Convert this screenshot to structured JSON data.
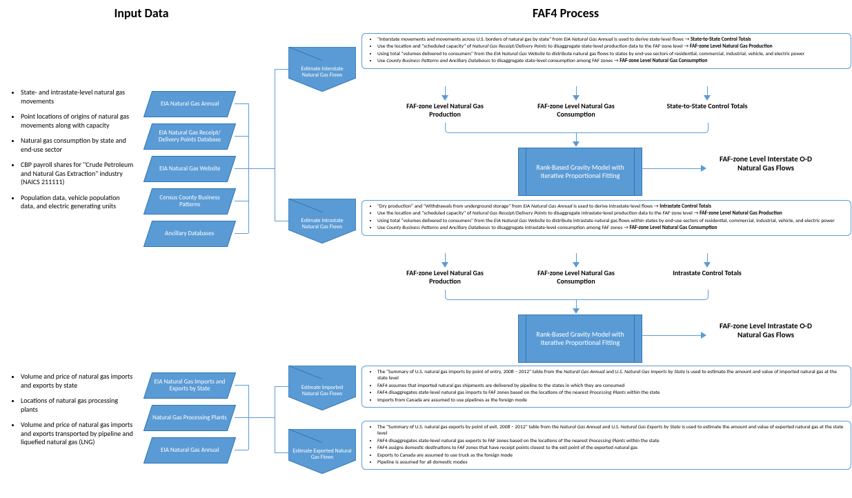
{
  "titles": {
    "input": "Input Data",
    "process": "FAF4 Process"
  },
  "colors": {
    "blue": "#5b9bd5",
    "blue_border": "#2e74b5",
    "text": "#000000",
    "bg": "#ffffff"
  },
  "bulletsTop": [
    "State- and intrastate-level natural gas movements",
    "Point locations of origins of natural gas movements along with capacity",
    "Natural gas consumption by state and end-use sector",
    "CBP payroll shares for \"Crude Petroleum and Natural Gas Extraction\" industry (NAICS 211111)",
    "Population data, vehicle population data, and electric generating units"
  ],
  "bulletsBottom": [
    "Volume and price of natural gas imports and exports by state",
    "Locations of natural gas processing plants",
    "Volume and price of natural gas imports and exports transported by pipeline and liquefied natural gas (LNG)"
  ],
  "sourcesTop": [
    "EIA Natural Gas Annual",
    "EIA Natural Gas Receipt/ Delivery Points Database",
    "EIA Natural Gas Website",
    "Census County Business Patterns",
    "Ancillary Databases"
  ],
  "sourcesBottom": [
    "EIA Natural Gas Imports and Exports by State",
    "Natural Gas Processing Plants",
    "EIA Natural Gas Annual"
  ],
  "chevrons": {
    "interstate": "Estimate Interstate Natural Gas Flows",
    "intrastate": "Estimate Intrastate Natural Gas Flows",
    "imported": "Estimate Imported Natural Gas Flows",
    "exported": "Estimate Exported Natural Gas Flows"
  },
  "box1": [
    "\"Interstate movements and movements across U.S. borders of natural gas by state\" from <i>EIA Natural Gas Annual</i> is used to derive state-level flows → <b>State-to-State Control Totals</b>",
    "Use the location and \"scheduled capacity\" of <i>Natural Gas Receipt/Delivery Points</i> to disaggregate state-level production data to the FAF-zone level → <b>FAF-zone Level Natural Gas Production</b>",
    "Using total \"volumes delivered to consumers\" from the <i>EIA Natural Gas Website</i> to distribute natural gas flows to states by end-use sectors of residential, commercial, industrial, vehicle, and electric power",
    "Use <i>County Business Patterns and Ancillary Databases</i> to disaggregate state-level consumption among FAF zones → <b>FAF-zone Level Natural Gas Consumption</b>"
  ],
  "box2": [
    "\"Dry production\" and \"Withdrawals from underground storage\" from <i>EIA Natural Gas Annual</i> is used to derive intrastate-level flows → <b>Intrastate Control Totals</b>",
    "Use the location and \"scheduled capacity\" of <i>Natural Gas Receipt/Delivery Points</i> to disaggregate intrastate-level production data to the FAF-zone level → <b>FAF-zone Level Natural Gas Production</b>",
    "Using total \"volumes delivered to consumers\" from the <i>EIA Natural Gas Website</i> to distribute intrastate natural gas flows within states by end-use sectors of residential, commercial, industrial, vehicle, and electric power",
    "Use <i>County Business Patterns and Ancillary Databases</i> to disaggregate intrastate-level consumption among FAF zones → <b>FAF-zone Level Natural Gas Consumption</b>"
  ],
  "box3": [
    "The \"Summary of U.S. natural gas imports by point of entry, 2008 – 2012\" table from the <i>Natural Gas Annual</i> and <i>U.S. Natural Gas Imports by State</i> is used to estimate the amount and value of imported natural gas at the state level",
    "FAF4 assumes that imported natural gas shipments are delivered by pipeline to the states in which they are consumed",
    "FAF4 disaggregates state-level natural gas imports to FAF zones based on the locations of the nearest <i>Processing Plants</i> within the state",
    "Imports from Canada are assumed to use pipelines as the foreign mode"
  ],
  "box4": [
    "The \"Summary of U.S. natural gas exports by point of exit, 2008 – 2012\" table from the <i>Natural Gas Annual</i> and <i>U.S. Natural Gas Exports by State</i> is used to estimate the amount and value of exported natural gas at the state level",
    "FAF4 disaggregates state-level natural gas exports to FAF zones based on the locations of the nearest <i>Processing Plants</i> within the state",
    "FAF4 assigns domestic destinations to FAF zones that have receipt points closest to the exit point of the exported natural gas",
    "Exports to Canada are assumed to use truck as the foreign mode",
    "Pipeline is assumed for all domestic modes"
  ],
  "subOuts1": [
    "FAF-zone Level Natural Gas Production",
    "FAF-zone Level Natural Gas Consumption",
    "State-to-State Control Totals"
  ],
  "subOuts2": [
    "FAF-zone Level Natural Gas Production",
    "FAF-zone Level Natural Gas Consumption",
    "Intrastate Control Totals"
  ],
  "model": "Rank-Based Gravity Model with Iterative Proportional Fitting",
  "final1": "FAF-zone Level Interstate O-D Natural Gas Flows",
  "final2": "FAF-zone Level Intrastate O-D Natural Gas Flows"
}
